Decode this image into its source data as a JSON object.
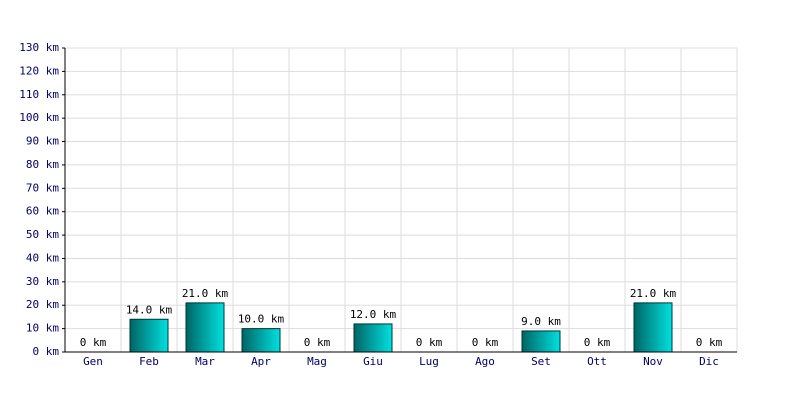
{
  "chart_data": {
    "type": "bar",
    "categories": [
      "Gen",
      "Feb",
      "Mar",
      "Apr",
      "Mag",
      "Giu",
      "Lug",
      "Ago",
      "Set",
      "Ott",
      "Nov",
      "Dic"
    ],
    "values": [
      0,
      14,
      21,
      10,
      0,
      12,
      0,
      0,
      9,
      0,
      21,
      0
    ],
    "value_labels": [
      "0 km",
      "14.0 km",
      "21.0 km",
      "10.0 km",
      "0 km",
      "12.0 km",
      "0 km",
      "0 km",
      "9.0 km",
      "0 km",
      "21.0 km",
      "0 km"
    ],
    "color": "#00e0e0",
    "ylim": [
      0,
      130
    ],
    "yticks": [
      {
        "value": 0,
        "label": "0 km"
      },
      {
        "value": 10,
        "label": "10 km"
      },
      {
        "value": 20,
        "label": "20 km"
      },
      {
        "value": 30,
        "label": "30 km"
      },
      {
        "value": 40,
        "label": "40 km"
      },
      {
        "value": 50,
        "label": "50 km"
      },
      {
        "value": 60,
        "label": "60 km"
      },
      {
        "value": 70,
        "label": "70 km"
      },
      {
        "value": 80,
        "label": "80 km"
      },
      {
        "value": 90,
        "label": "90 km"
      },
      {
        "value": 100,
        "label": "100 km"
      },
      {
        "value": 110,
        "label": "110 km"
      },
      {
        "value": 120,
        "label": "120 km"
      },
      {
        "value": 130,
        "label": "130 km"
      }
    ],
    "grid": true
  }
}
